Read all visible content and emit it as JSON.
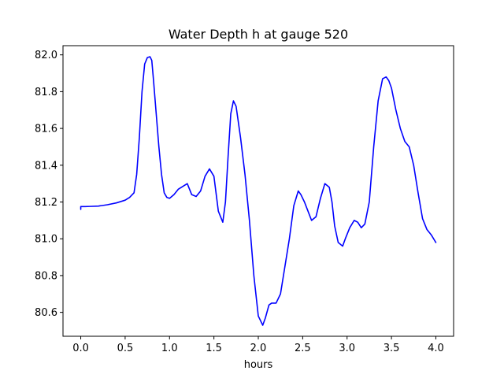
{
  "chart_data": {
    "type": "line",
    "title": "Water Depth h at gauge 520",
    "xlabel": "hours",
    "ylabel": "",
    "xlim": [
      -0.2,
      4.2
    ],
    "ylim": [
      80.47,
      82.05
    ],
    "grid": false,
    "legend": "none",
    "xticks": [
      0.0,
      0.5,
      1.0,
      1.5,
      2.0,
      2.5,
      3.0,
      3.5,
      4.0
    ],
    "xtick_labels": [
      "0.0",
      "0.5",
      "1.0",
      "1.5",
      "2.0",
      "2.5",
      "3.0",
      "3.5",
      "4.0"
    ],
    "yticks": [
      80.6,
      80.8,
      81.0,
      81.2,
      81.4,
      81.6,
      81.8,
      82.0
    ],
    "ytick_labels": [
      "80.6",
      "80.8",
      "81.0",
      "81.2",
      "81.4",
      "81.6",
      "81.8",
      "82.0"
    ],
    "series": [
      {
        "color": "#0000ff",
        "x": [
          0.0,
          0.0,
          0.05,
          0.1,
          0.2,
          0.3,
          0.4,
          0.5,
          0.55,
          0.6,
          0.63,
          0.66,
          0.69,
          0.72,
          0.75,
          0.78,
          0.8,
          0.82,
          0.85,
          0.88,
          0.91,
          0.94,
          0.97,
          1.0,
          1.05,
          1.1,
          1.15,
          1.2,
          1.25,
          1.3,
          1.35,
          1.4,
          1.45,
          1.5,
          1.55,
          1.6,
          1.63,
          1.66,
          1.69,
          1.72,
          1.75,
          1.8,
          1.85,
          1.9,
          1.95,
          2.0,
          2.05,
          2.08,
          2.12,
          2.15,
          2.2,
          2.25,
          2.3,
          2.35,
          2.4,
          2.45,
          2.48,
          2.52,
          2.56,
          2.6,
          2.65,
          2.7,
          2.75,
          2.8,
          2.83,
          2.86,
          2.9,
          2.95,
          2.98,
          3.03,
          3.08,
          3.12,
          3.16,
          3.2,
          3.25,
          3.3,
          3.35,
          3.4,
          3.44,
          3.47,
          3.5,
          3.55,
          3.6,
          3.65,
          3.7,
          3.75,
          3.8,
          3.85,
          3.9,
          3.95,
          4.0
        ],
        "y": [
          81.16,
          81.175,
          81.175,
          81.176,
          81.178,
          81.185,
          81.195,
          81.21,
          81.225,
          81.25,
          81.35,
          81.55,
          81.8,
          81.95,
          81.985,
          81.99,
          81.97,
          81.86,
          81.68,
          81.5,
          81.35,
          81.25,
          81.225,
          81.22,
          81.24,
          81.27,
          81.285,
          81.3,
          81.24,
          81.23,
          81.26,
          81.34,
          81.38,
          81.34,
          81.15,
          81.09,
          81.2,
          81.45,
          81.68,
          81.75,
          81.72,
          81.55,
          81.35,
          81.1,
          80.8,
          80.58,
          80.53,
          80.57,
          80.64,
          80.65,
          80.65,
          80.7,
          80.85,
          81.0,
          81.18,
          81.26,
          81.24,
          81.2,
          81.15,
          81.1,
          81.12,
          81.22,
          81.3,
          81.28,
          81.2,
          81.07,
          80.98,
          80.96,
          81.0,
          81.06,
          81.1,
          81.09,
          81.06,
          81.08,
          81.2,
          81.5,
          81.75,
          81.87,
          81.88,
          81.86,
          81.82,
          81.7,
          81.6,
          81.53,
          81.5,
          81.4,
          81.25,
          81.11,
          81.05,
          81.02,
          80.98
        ]
      }
    ]
  }
}
